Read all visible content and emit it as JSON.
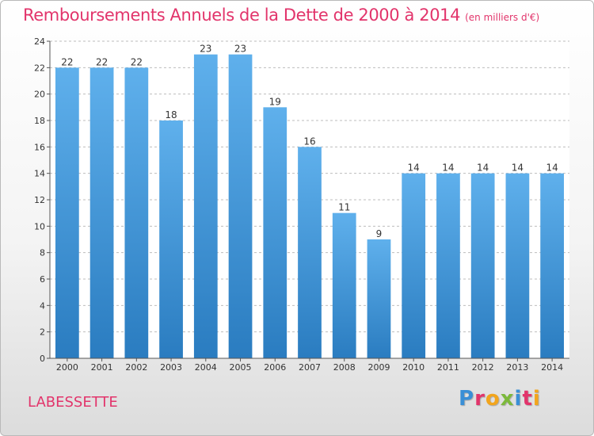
{
  "title": "Remboursements Annuels de la Dette de 2000 à 2014",
  "subtitle": "(en milliers d'€)",
  "commune": "LABESSETTE",
  "logo": {
    "text": "Proxiti",
    "letter_colors": [
      "#3a8fd6",
      "#e2346b",
      "#f2a51d",
      "#7cb93b",
      "#3a8fd6",
      "#e2346b",
      "#f2a51d"
    ]
  },
  "colors": {
    "bar_top": "#5fb0ec",
    "bar_bottom": "#2a7cc0",
    "grid": "#bdbdbd",
    "plot_bg": "#ffffff"
  },
  "chart_data": {
    "type": "bar",
    "title": "Remboursements Annuels de la Dette de 2000 à 2014",
    "subtitle": "(en milliers d'€)",
    "categories": [
      "2000",
      "2001",
      "2002",
      "2003",
      "2004",
      "2005",
      "2006",
      "2007",
      "2008",
      "2009",
      "2010",
      "2011",
      "2012",
      "2013",
      "2014"
    ],
    "values": [
      22,
      22,
      22,
      18,
      23,
      23,
      19,
      16,
      11,
      9,
      14,
      14,
      14,
      14,
      14
    ],
    "data_labels": [
      "22",
      "22",
      "22",
      "18",
      "23",
      "23",
      "19",
      "16",
      "11",
      "9",
      "14",
      "14",
      "14",
      "14",
      "14"
    ],
    "ylim": [
      0,
      24
    ],
    "yticks": [
      0,
      2,
      4,
      6,
      8,
      10,
      12,
      14,
      16,
      18,
      20,
      22,
      24
    ],
    "ytick_labels": [
      "0",
      "2",
      "4",
      "6",
      "8",
      "10",
      "12",
      "14",
      "16",
      "18",
      "20",
      "22",
      "24"
    ],
    "grid": true,
    "xlabel": "",
    "ylabel": ""
  }
}
